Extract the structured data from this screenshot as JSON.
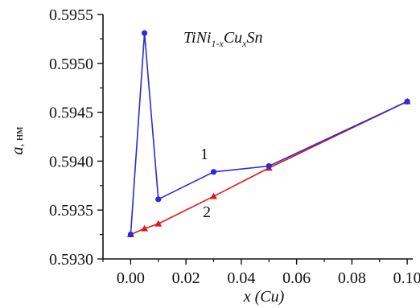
{
  "chart_data": {
    "type": "line",
    "title": "",
    "annotation": {
      "formula_parts": [
        {
          "text": "TiNi",
          "role": "base"
        },
        {
          "text": "1-x",
          "role": "sub"
        },
        {
          "text": "Cu",
          "role": "base"
        },
        {
          "text": "x",
          "role": "sub"
        },
        {
          "text": "Sn",
          "role": "base"
        }
      ]
    },
    "xlabel": {
      "var": "x",
      "unit": "(Cu)"
    },
    "ylabel": {
      "var": "a",
      "unit": ", нм"
    },
    "xlim": [
      -0.01,
      0.102
    ],
    "ylim": [
      0.593,
      0.5955
    ],
    "xticks": [
      0.0,
      0.02,
      0.04,
      0.06,
      0.08,
      0.1
    ],
    "xtick_labels": [
      "0.00",
      "0.02",
      "0.04",
      "0.06",
      "0.08",
      "0.10"
    ],
    "yticks": [
      0.593,
      0.5935,
      0.594,
      0.5945,
      0.595,
      0.5955
    ],
    "ytick_labels": [
      "0.5930",
      "0.5935",
      "0.5940",
      "0.5945",
      "0.5950",
      "0.5955"
    ],
    "series": [
      {
        "name": "1",
        "color": "#2a2ad8",
        "marker": "circle",
        "x": [
          0.0,
          0.005,
          0.01,
          0.03,
          0.05,
          0.1
        ],
        "y": [
          0.59325,
          0.59531,
          0.59361,
          0.59389,
          0.59395,
          0.59461
        ]
      },
      {
        "name": "2",
        "color": "#e01818",
        "marker": "triangle",
        "x": [
          0.0,
          0.005,
          0.01,
          0.03,
          0.05,
          0.1
        ],
        "y": [
          0.59325,
          0.59331,
          0.59336,
          0.59364,
          0.59393,
          0.59461
        ]
      }
    ],
    "grid": false,
    "legend": "inline labels"
  }
}
